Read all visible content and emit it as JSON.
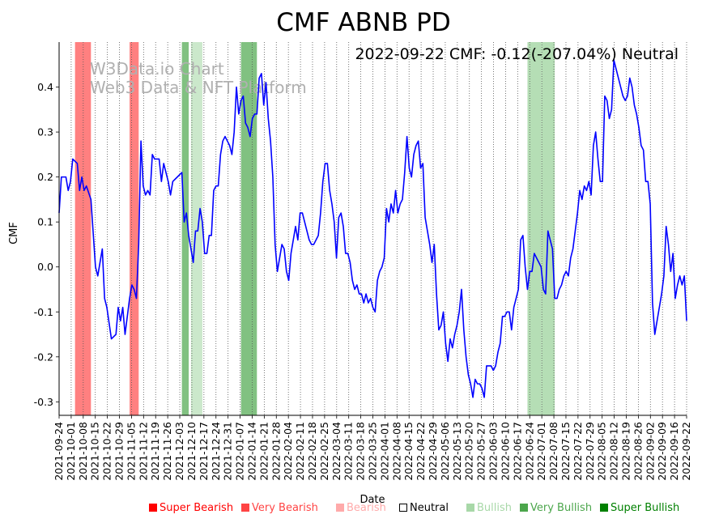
{
  "chart_data": {
    "type": "line",
    "title": "CMF ABNB PD",
    "annotation": "2022-09-22 CMF: -0.12(-207.04%) Neutral",
    "watermark": [
      "W3Data.io Chart",
      "Web3 Data & NFT Platform"
    ],
    "xlabel": "Date",
    "ylabel": "CMF",
    "ylim": [
      -0.33,
      0.5
    ],
    "yticks": [
      -0.3,
      -0.2,
      -0.1,
      0.0,
      0.1,
      0.2,
      0.3,
      0.4
    ],
    "x_start": "2021-09-24",
    "x_end": "2022-09-22",
    "xtick_labels": [
      "2021-09-24",
      "2021-10-01",
      "2021-10-08",
      "2021-10-15",
      "2021-10-22",
      "2021-10-29",
      "2021-11-05",
      "2021-11-12",
      "2021-11-19",
      "2021-11-26",
      "2021-12-03",
      "2021-12-10",
      "2021-12-17",
      "2021-12-24",
      "2021-12-31",
      "2022-01-07",
      "2022-01-14",
      "2022-01-21",
      "2022-01-28",
      "2022-02-04",
      "2022-02-11",
      "2022-02-18",
      "2022-02-25",
      "2022-03-04",
      "2022-03-11",
      "2022-03-18",
      "2022-03-25",
      "2022-04-01",
      "2022-04-08",
      "2022-04-15",
      "2022-04-22",
      "2022-04-29",
      "2022-05-06",
      "2022-05-13",
      "2022-05-20",
      "2022-05-27",
      "2022-06-03",
      "2022-06-10",
      "2022-06-17",
      "2022-06-24",
      "2022-07-01",
      "2022-07-08",
      "2022-07-15",
      "2022-07-22",
      "2022-07-29",
      "2022-08-05",
      "2022-08-12",
      "2022-08-19",
      "2022-08-26",
      "2022-09-02",
      "2022-09-09",
      "2022-09-16",
      "2022-09-22"
    ],
    "series": [
      {
        "name": "CMF",
        "color": "#0000ff",
        "points": [
          [
            0,
            0.12
          ],
          [
            1,
            0.2
          ],
          [
            3,
            0.2
          ],
          [
            4,
            0.17
          ],
          [
            5,
            0.19
          ],
          [
            6,
            0.24
          ],
          [
            8,
            0.23
          ],
          [
            9,
            0.17
          ],
          [
            10,
            0.2
          ],
          [
            11,
            0.17
          ],
          [
            12,
            0.18
          ],
          [
            14,
            0.15
          ],
          [
            16,
            0.0
          ],
          [
            17,
            -0.02
          ],
          [
            18,
            0.01
          ],
          [
            19,
            0.04
          ],
          [
            20,
            -0.07
          ],
          [
            21,
            -0.09
          ],
          [
            23,
            -0.16
          ],
          [
            25,
            -0.15
          ],
          [
            26,
            -0.09
          ],
          [
            27,
            -0.12
          ],
          [
            28,
            -0.09
          ],
          [
            29,
            -0.15
          ],
          [
            31,
            -0.07
          ],
          [
            32,
            -0.04
          ],
          [
            33,
            -0.05
          ],
          [
            34,
            -0.07
          ],
          [
            35,
            0.05
          ],
          [
            36,
            0.28
          ],
          [
            37,
            0.18
          ],
          [
            38,
            0.16
          ],
          [
            39,
            0.17
          ],
          [
            40,
            0.16
          ],
          [
            41,
            0.25
          ],
          [
            42,
            0.24
          ],
          [
            43,
            0.24
          ],
          [
            44,
            0.24
          ],
          [
            45,
            0.19
          ],
          [
            46,
            0.23
          ],
          [
            48,
            0.19
          ],
          [
            49,
            0.16
          ],
          [
            50,
            0.19
          ],
          [
            52,
            0.2
          ],
          [
            54,
            0.21
          ],
          [
            55,
            0.1
          ],
          [
            56,
            0.12
          ],
          [
            57,
            0.07
          ],
          [
            58,
            0.04
          ],
          [
            59,
            0.01
          ],
          [
            60,
            0.08
          ],
          [
            61,
            0.08
          ],
          [
            62,
            0.13
          ],
          [
            63,
            0.1
          ],
          [
            64,
            0.03
          ],
          [
            65,
            0.03
          ],
          [
            66,
            0.07
          ],
          [
            67,
            0.07
          ],
          [
            68,
            0.17
          ],
          [
            69,
            0.18
          ],
          [
            70,
            0.18
          ],
          [
            71,
            0.25
          ],
          [
            72,
            0.28
          ],
          [
            73,
            0.29
          ],
          [
            74,
            0.28
          ],
          [
            75,
            0.27
          ],
          [
            76,
            0.25
          ],
          [
            77,
            0.3
          ],
          [
            78,
            0.4
          ],
          [
            79,
            0.34
          ],
          [
            80,
            0.37
          ],
          [
            81,
            0.38
          ],
          [
            82,
            0.32
          ],
          [
            83,
            0.31
          ],
          [
            84,
            0.29
          ],
          [
            85,
            0.33
          ],
          [
            86,
            0.34
          ],
          [
            87,
            0.34
          ],
          [
            88,
            0.42
          ],
          [
            89,
            0.43
          ],
          [
            90,
            0.36
          ],
          [
            91,
            0.41
          ],
          [
            92,
            0.33
          ],
          [
            93,
            0.28
          ],
          [
            94,
            0.2
          ],
          [
            95,
            0.05
          ],
          [
            96,
            -0.01
          ],
          [
            97,
            0.02
          ],
          [
            98,
            0.05
          ],
          [
            99,
            0.04
          ],
          [
            100,
            -0.01
          ],
          [
            101,
            -0.03
          ],
          [
            102,
            0.03
          ],
          [
            103,
            0.06
          ],
          [
            104,
            0.09
          ],
          [
            105,
            0.06
          ],
          [
            106,
            0.12
          ],
          [
            107,
            0.12
          ],
          [
            108,
            0.1
          ],
          [
            109,
            0.08
          ],
          [
            110,
            0.06
          ],
          [
            111,
            0.05
          ],
          [
            112,
            0.05
          ],
          [
            113,
            0.06
          ],
          [
            114,
            0.07
          ],
          [
            115,
            0.12
          ],
          [
            116,
            0.19
          ],
          [
            117,
            0.23
          ],
          [
            118,
            0.23
          ],
          [
            119,
            0.17
          ],
          [
            120,
            0.14
          ],
          [
            121,
            0.1
          ],
          [
            122,
            0.02
          ],
          [
            123,
            0.11
          ],
          [
            124,
            0.12
          ],
          [
            125,
            0.09
          ],
          [
            126,
            0.03
          ],
          [
            127,
            0.03
          ],
          [
            128,
            0.01
          ],
          [
            129,
            -0.03
          ],
          [
            130,
            -0.05
          ],
          [
            131,
            -0.04
          ],
          [
            132,
            -0.06
          ],
          [
            133,
            -0.06
          ],
          [
            134,
            -0.08
          ],
          [
            135,
            -0.06
          ],
          [
            136,
            -0.08
          ],
          [
            137,
            -0.07
          ],
          [
            138,
            -0.09
          ],
          [
            139,
            -0.1
          ],
          [
            140,
            -0.03
          ],
          [
            141,
            -0.01
          ],
          [
            142,
            0.0
          ],
          [
            143,
            0.02
          ],
          [
            144,
            0.13
          ],
          [
            145,
            0.1
          ],
          [
            146,
            0.14
          ],
          [
            147,
            0.12
          ],
          [
            148,
            0.17
          ],
          [
            149,
            0.12
          ],
          [
            150,
            0.14
          ],
          [
            151,
            0.15
          ],
          [
            152,
            0.21
          ],
          [
            153,
            0.29
          ],
          [
            154,
            0.22
          ],
          [
            155,
            0.2
          ],
          [
            156,
            0.25
          ],
          [
            157,
            0.27
          ],
          [
            158,
            0.28
          ],
          [
            159,
            0.22
          ],
          [
            160,
            0.23
          ],
          [
            161,
            0.11
          ],
          [
            162,
            0.08
          ],
          [
            163,
            0.05
          ],
          [
            164,
            0.01
          ],
          [
            165,
            0.05
          ],
          [
            166,
            -0.06
          ],
          [
            167,
            -0.14
          ],
          [
            168,
            -0.13
          ],
          [
            169,
            -0.1
          ],
          [
            170,
            -0.17
          ],
          [
            171,
            -0.21
          ],
          [
            172,
            -0.16
          ],
          [
            173,
            -0.18
          ],
          [
            174,
            -0.15
          ],
          [
            175,
            -0.13
          ],
          [
            176,
            -0.1
          ],
          [
            177,
            -0.05
          ],
          [
            178,
            -0.14
          ],
          [
            179,
            -0.2
          ],
          [
            180,
            -0.24
          ],
          [
            181,
            -0.26
          ],
          [
            182,
            -0.29
          ],
          [
            183,
            -0.25
          ],
          [
            184,
            -0.26
          ],
          [
            185,
            -0.26
          ],
          [
            186,
            -0.27
          ],
          [
            187,
            -0.29
          ],
          [
            188,
            -0.22
          ],
          [
            189,
            -0.22
          ],
          [
            190,
            -0.22
          ],
          [
            191,
            -0.23
          ],
          [
            192,
            -0.22
          ],
          [
            193,
            -0.19
          ],
          [
            194,
            -0.17
          ],
          [
            195,
            -0.11
          ],
          [
            196,
            -0.11
          ],
          [
            197,
            -0.1
          ],
          [
            198,
            -0.1
          ],
          [
            199,
            -0.14
          ],
          [
            200,
            -0.09
          ],
          [
            201,
            -0.07
          ],
          [
            202,
            -0.05
          ],
          [
            203,
            0.06
          ],
          [
            204,
            0.07
          ],
          [
            205,
            0.0
          ],
          [
            206,
            -0.05
          ],
          [
            207,
            -0.01
          ],
          [
            208,
            -0.01
          ],
          [
            209,
            0.03
          ],
          [
            210,
            0.02
          ],
          [
            211,
            0.01
          ],
          [
            212,
            0.0
          ],
          [
            213,
            -0.05
          ],
          [
            214,
            -0.06
          ],
          [
            215,
            0.08
          ],
          [
            216,
            0.06
          ],
          [
            217,
            0.04
          ],
          [
            218,
            -0.07
          ],
          [
            219,
            -0.07
          ],
          [
            220,
            -0.05
          ],
          [
            221,
            -0.04
          ],
          [
            222,
            -0.02
          ],
          [
            223,
            -0.01
          ],
          [
            224,
            -0.02
          ],
          [
            225,
            0.02
          ],
          [
            226,
            0.04
          ],
          [
            227,
            0.08
          ],
          [
            228,
            0.12
          ],
          [
            229,
            0.17
          ],
          [
            230,
            0.15
          ],
          [
            231,
            0.18
          ],
          [
            232,
            0.17
          ],
          [
            233,
            0.19
          ],
          [
            234,
            0.16
          ],
          [
            235,
            0.27
          ],
          [
            236,
            0.3
          ],
          [
            237,
            0.24
          ],
          [
            238,
            0.19
          ],
          [
            239,
            0.19
          ],
          [
            240,
            0.38
          ],
          [
            241,
            0.37
          ],
          [
            242,
            0.33
          ],
          [
            243,
            0.35
          ],
          [
            244,
            0.46
          ],
          [
            245,
            0.44
          ],
          [
            246,
            0.42
          ],
          [
            247,
            0.4
          ],
          [
            248,
            0.38
          ],
          [
            249,
            0.37
          ],
          [
            250,
            0.38
          ],
          [
            251,
            0.42
          ],
          [
            252,
            0.4
          ],
          [
            253,
            0.36
          ],
          [
            254,
            0.34
          ],
          [
            255,
            0.31
          ],
          [
            256,
            0.27
          ],
          [
            257,
            0.26
          ],
          [
            258,
            0.19
          ],
          [
            259,
            0.19
          ],
          [
            260,
            0.14
          ],
          [
            261,
            -0.08
          ],
          [
            262,
            -0.15
          ],
          [
            263,
            -0.12
          ],
          [
            264,
            -0.09
          ],
          [
            265,
            -0.06
          ],
          [
            266,
            -0.02
          ],
          [
            267,
            0.09
          ],
          [
            268,
            0.05
          ],
          [
            269,
            -0.01
          ],
          [
            270,
            0.03
          ],
          [
            271,
            -0.07
          ],
          [
            272,
            -0.04
          ],
          [
            273,
            -0.02
          ],
          [
            274,
            -0.04
          ],
          [
            275,
            -0.02
          ],
          [
            276,
            -0.12
          ]
        ]
      }
    ],
    "shaded_regions": [
      {
        "x0": 7,
        "x1": 14,
        "signal": "Very Bearish",
        "color": "#ff5555",
        "alpha": 0.75
      },
      {
        "x0": 31,
        "x1": 35,
        "signal": "Very Bearish",
        "color": "#ff5555",
        "alpha": 0.75
      },
      {
        "x0": 54,
        "x1": 57,
        "signal": "Very Bullish",
        "color": "#4ca64c",
        "alpha": 0.7
      },
      {
        "x0": 58,
        "x1": 63,
        "signal": "Bullish",
        "color": "#a8d8a8",
        "alpha": 0.6
      },
      {
        "x0": 80,
        "x1": 87,
        "signal": "Very Bullish",
        "color": "#4ca64c",
        "alpha": 0.7
      },
      {
        "x0": 206,
        "x1": 212,
        "signal": "Bullish",
        "color": "#a8d8a8",
        "alpha": 0.85
      },
      {
        "x0": 212,
        "x1": 218,
        "signal": "Bullish",
        "color": "#a8d8a8",
        "alpha": 0.85
      }
    ],
    "legend": [
      {
        "label": "Super Bearish",
        "color": "#ff0000"
      },
      {
        "label": "Very Bearish",
        "color": "#ff4444"
      },
      {
        "label": "Bearish",
        "color": "#ffaaaa"
      },
      {
        "label": "Neutral",
        "color": "#000000"
      },
      {
        "label": "Bullish",
        "color": "#a8d8a8"
      },
      {
        "label": "Very Bullish",
        "color": "#4ca64c"
      },
      {
        "label": "Super Bullish",
        "color": "#008000"
      }
    ]
  }
}
